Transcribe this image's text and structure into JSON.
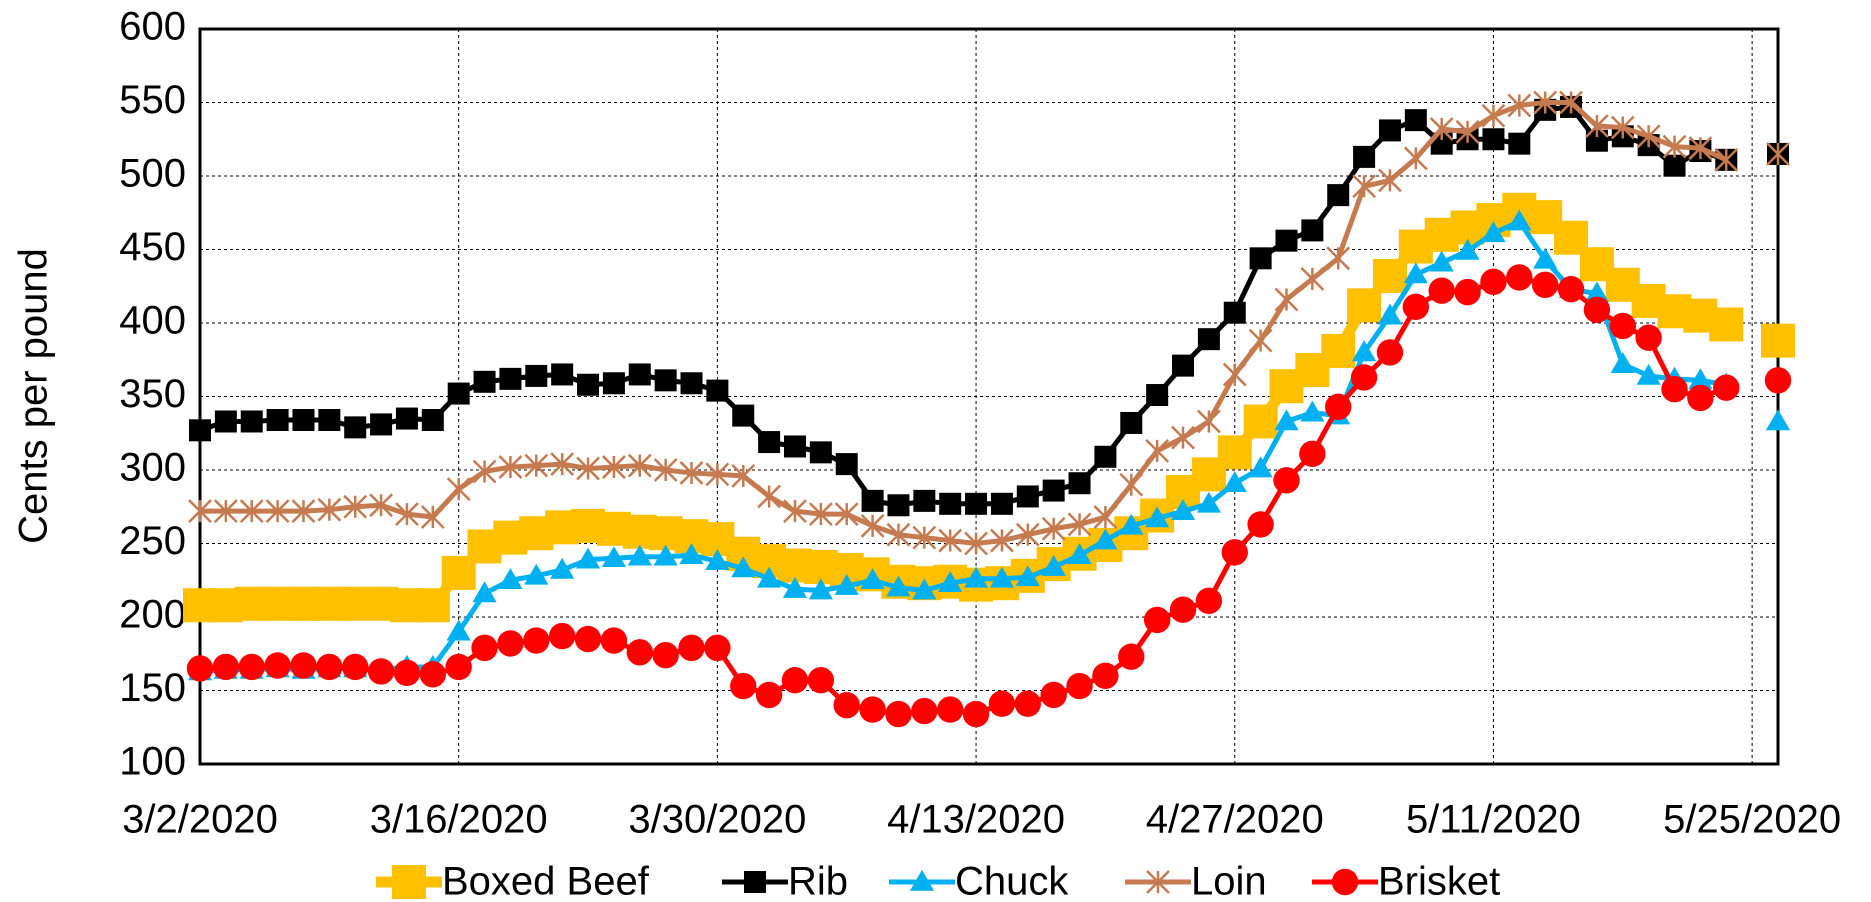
{
  "chart_data": {
    "type": "line",
    "ylabel": "Cents per pound",
    "categories": [
      "3/2/2020",
      null,
      null,
      null,
      null,
      null,
      null,
      null,
      null,
      null,
      "3/16/2020",
      null,
      null,
      null,
      null,
      null,
      null,
      null,
      null,
      null,
      "3/30/2020",
      null,
      null,
      null,
      null,
      null,
      null,
      null,
      null,
      null,
      "4/13/2020",
      null,
      null,
      null,
      null,
      null,
      null,
      null,
      null,
      null,
      "4/27/2020",
      null,
      null,
      null,
      null,
      null,
      null,
      null,
      null,
      null,
      "5/11/2020",
      null,
      null,
      null,
      null,
      null,
      null,
      null,
      null,
      null,
      "5/25/2020",
      null
    ],
    "ylim": [
      100,
      600
    ],
    "yticks": [
      100,
      150,
      200,
      250,
      300,
      350,
      400,
      450,
      500,
      550,
      600
    ],
    "grid": true,
    "series": [
      {
        "name": "Boxed Beef",
        "color": "#FFC000",
        "marker": "square",
        "values": [
          208,
          208,
          209,
          209,
          209,
          209,
          209,
          209,
          208,
          208,
          230,
          248,
          254,
          257,
          261,
          262,
          260,
          258,
          257,
          255,
          253,
          243,
          238,
          235,
          234,
          232,
          229,
          224,
          223,
          224,
          222,
          223,
          228,
          236,
          243,
          249,
          257,
          269,
          285,
          297,
          312,
          333,
          357,
          368,
          381,
          412,
          432,
          452,
          460,
          465,
          470,
          477,
          472,
          458,
          440,
          426,
          415,
          408,
          405,
          399,
          null,
          388
        ]
      },
      {
        "name": "Rib",
        "color": "#000000",
        "marker": "square",
        "values": [
          327,
          333,
          333,
          334,
          334,
          334,
          329,
          331,
          335,
          334,
          352,
          360,
          362,
          364,
          365,
          358,
          359,
          365,
          361,
          359,
          354,
          337,
          319,
          316,
          312,
          304,
          279,
          276,
          279,
          277,
          277,
          277,
          282,
          286,
          291,
          309,
          332,
          351,
          371,
          389,
          407,
          444,
          456,
          463,
          487,
          513,
          531,
          538,
          522,
          525,
          525,
          522,
          545,
          547,
          524,
          527,
          521,
          507,
          517,
          511,
          null,
          515
        ]
      },
      {
        "name": "Chuck",
        "color": "#00B0F0",
        "marker": "triangle",
        "values": [
          163,
          164,
          164,
          165,
          164,
          165,
          165,
          164,
          166,
          166,
          190,
          216,
          225,
          228,
          232,
          239,
          240,
          241,
          241,
          242,
          238,
          233,
          226,
          219,
          218,
          221,
          225,
          220,
          218,
          223,
          226,
          226,
          227,
          234,
          242,
          252,
          262,
          267,
          272,
          277,
          291,
          301,
          333,
          339,
          337,
          380,
          405,
          433,
          441,
          449,
          461,
          469,
          443,
          423,
          420,
          372,
          364,
          362,
          361,
          358,
          null,
          333
        ]
      },
      {
        "name": "Loin",
        "color": "#C57A4F",
        "marker": "star",
        "values": [
          272,
          272,
          272,
          272,
          272,
          273,
          275,
          276,
          270,
          268,
          287,
          299,
          302,
          303,
          304,
          301,
          302,
          303,
          300,
          298,
          297,
          296,
          282,
          272,
          270,
          270,
          262,
          256,
          254,
          252,
          250,
          252,
          256,
          260,
          263,
          268,
          290,
          313,
          322,
          333,
          365,
          388,
          416,
          430,
          444,
          493,
          497,
          512,
          532,
          530,
          541,
          548,
          550,
          550,
          534,
          533,
          527,
          520,
          519,
          511,
          null,
          515
        ]
      },
      {
        "name": "Brisket",
        "color": "#FF0000",
        "marker": "circle",
        "values": [
          165,
          166,
          166,
          167,
          167,
          166,
          166,
          163,
          162,
          161,
          166,
          179,
          182,
          184,
          187,
          185,
          184,
          176,
          174,
          179,
          179,
          153,
          147,
          157,
          157,
          140,
          137,
          134,
          136,
          137,
          134,
          141,
          141,
          147,
          153,
          160,
          173,
          198,
          205,
          211,
          244,
          263,
          293,
          311,
          343,
          363,
          380,
          411,
          422,
          421,
          428,
          431,
          426,
          423,
          409,
          398,
          390,
          355,
          349,
          356,
          null,
          361
        ]
      }
    ]
  }
}
